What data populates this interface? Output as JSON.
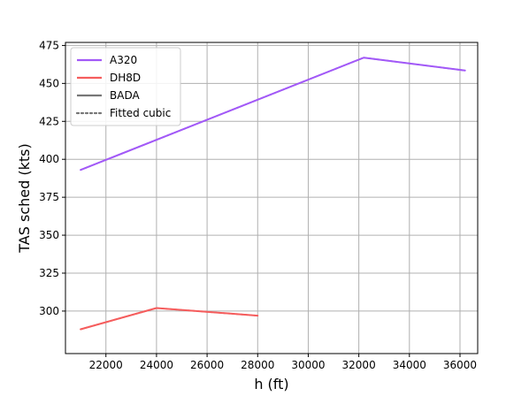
{
  "chart_data": {
    "type": "line",
    "title": "",
    "xlabel": "h (ft)",
    "ylabel": "TAS sched (kts)",
    "xlim": [
      20400,
      36700
    ],
    "ylim": [
      272,
      477
    ],
    "x_ticks": [
      22000,
      24000,
      26000,
      28000,
      30000,
      32000,
      34000,
      36000
    ],
    "y_ticks": [
      300,
      325,
      350,
      375,
      400,
      425,
      450,
      475
    ],
    "grid": true,
    "legend_position": "top-left",
    "legend": [
      {
        "label": "A320",
        "color": "#a259f7",
        "style": "solid"
      },
      {
        "label": "DH8D",
        "color": "#f55d5d",
        "style": "solid"
      },
      {
        "label": "BADA",
        "color": "#777777",
        "style": "solid"
      },
      {
        "label": "Fitted cubic",
        "color": "#777777",
        "style": "dotted"
      }
    ],
    "series": [
      {
        "name": "A320",
        "group": "BADA",
        "color": "#a259f7",
        "style": "solid",
        "x": [
          21000,
          32200,
          36200
        ],
        "y": [
          393,
          467,
          458.5
        ]
      },
      {
        "name": "A320",
        "group": "Fitted cubic",
        "color": "#a259f7",
        "style": "dotted",
        "x": [
          21000,
          32200,
          36200
        ],
        "y": [
          393,
          467,
          458.5
        ]
      },
      {
        "name": "DH8D",
        "group": "BADA",
        "color": "#f55d5d",
        "style": "solid",
        "x": [
          21000,
          24000,
          28000
        ],
        "y": [
          288,
          302,
          297
        ]
      },
      {
        "name": "DH8D",
        "group": "Fitted cubic",
        "color": "#f55d5d",
        "style": "dotted",
        "x": [
          21000,
          24000,
          28000
        ],
        "y": [
          288,
          302,
          297
        ]
      }
    ]
  }
}
